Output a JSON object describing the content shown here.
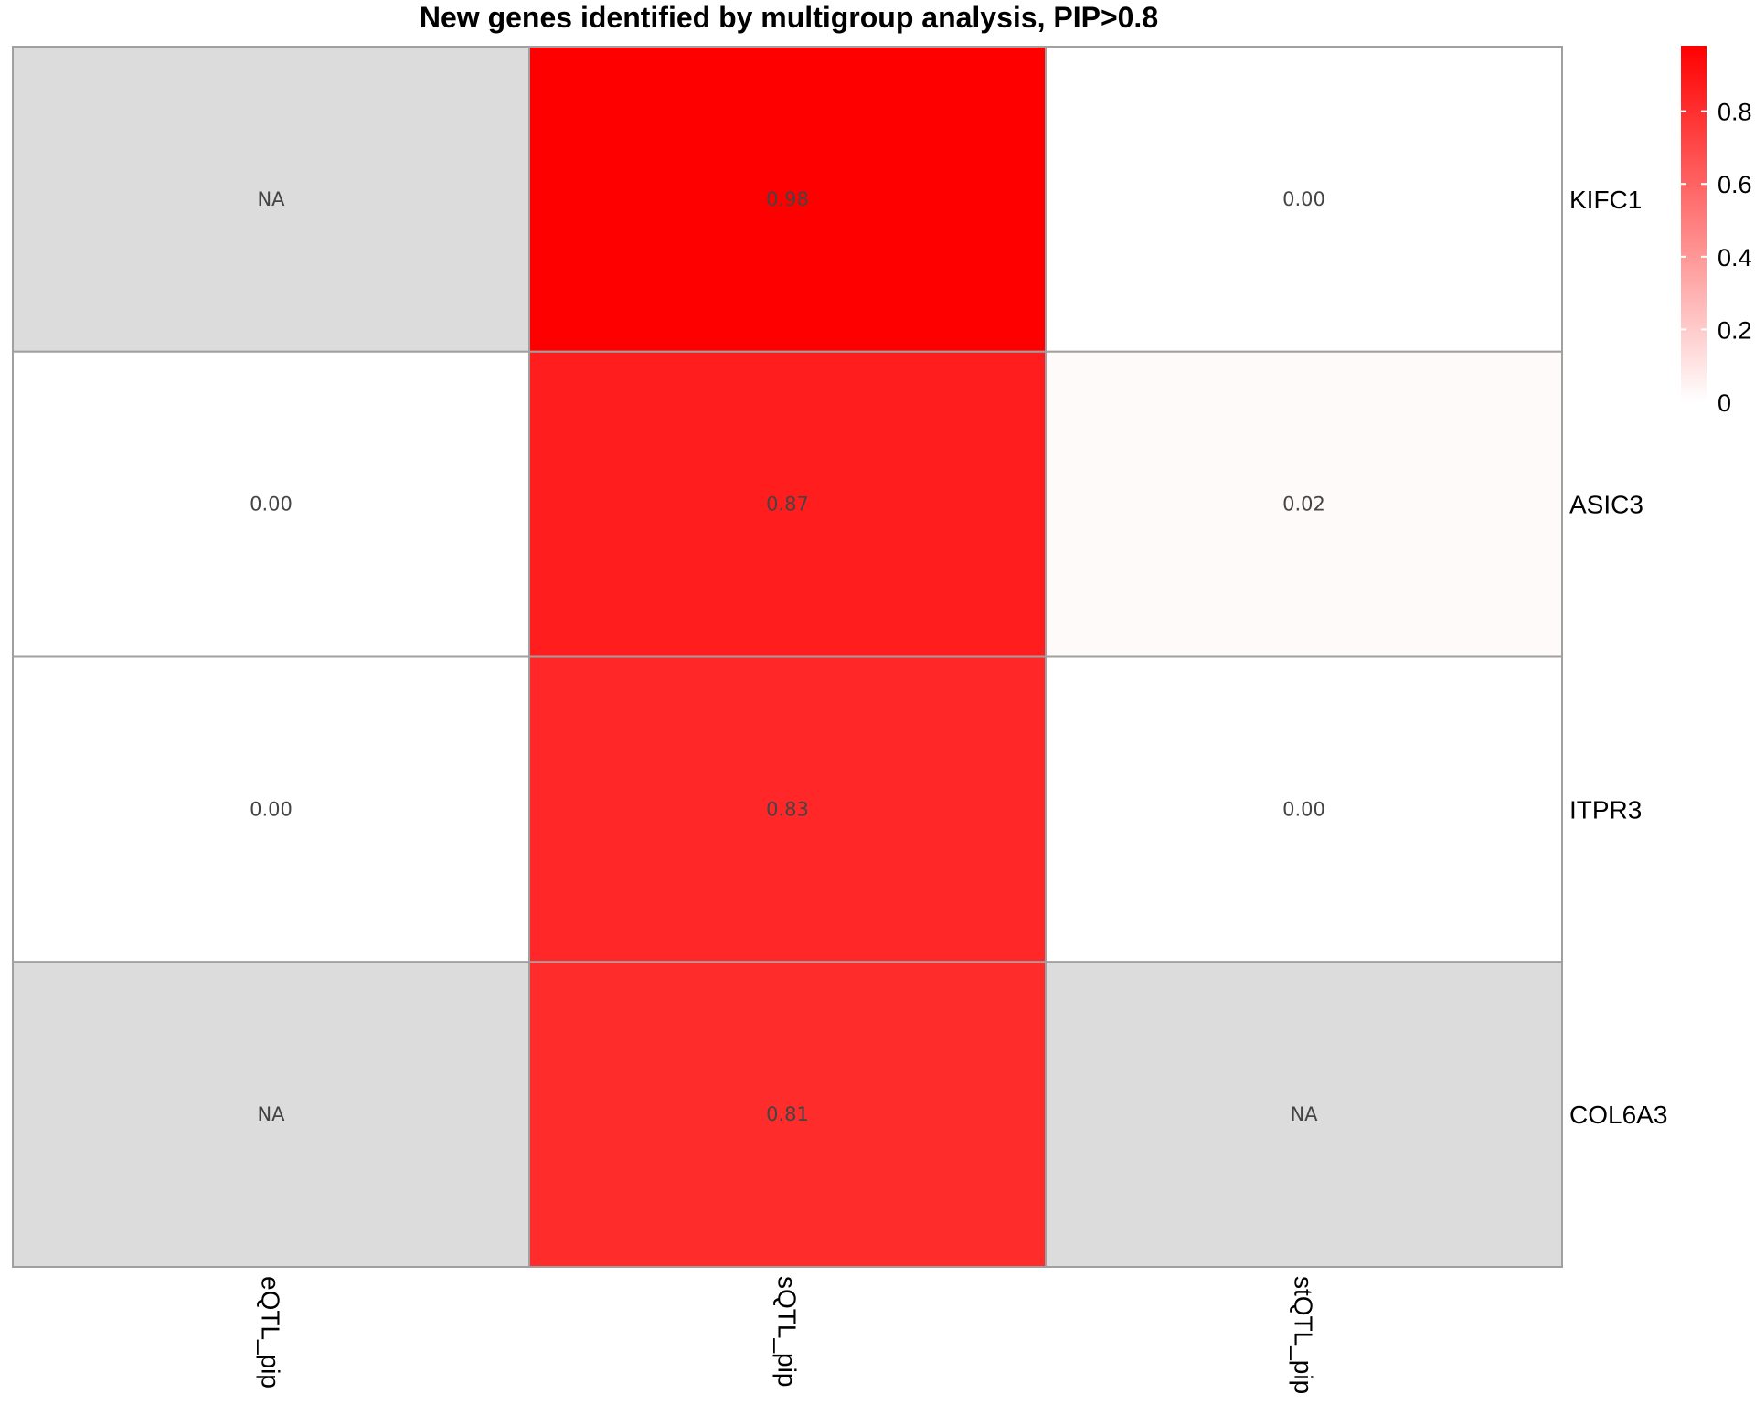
{
  "chart_data": {
    "type": "heatmap",
    "title": "New genes identified by multigroup analysis, PIP>0.8",
    "rows": [
      "KIFC1",
      "ASIC3",
      "ITPR3",
      "COL6A3"
    ],
    "columns": [
      "eQTL_pip",
      "sQTL_pip",
      "stQTL_pip"
    ],
    "values": [
      [
        null,
        0.98,
        0.0
      ],
      [
        0.0,
        0.87,
        0.02
      ],
      [
        0.0,
        0.83,
        0.0
      ],
      [
        null,
        0.81,
        null
      ]
    ],
    "cell_labels": [
      [
        "NA",
        "0.98",
        "0.00"
      ],
      [
        "0.00",
        "0.87",
        "0.02"
      ],
      [
        "0.00",
        "0.83",
        "0.00"
      ],
      [
        "NA",
        "0.81",
        "NA"
      ]
    ],
    "color_scale": {
      "low": "#ffffff",
      "high": "#ff0000",
      "na_color": "#dcdcdc",
      "min": 0,
      "max": 0.98
    },
    "legend": {
      "ticks": [
        0,
        0.2,
        0.4,
        0.6,
        0.8
      ],
      "tick_labels": [
        "0",
        "0.2",
        "0.4",
        "0.6",
        "0.8"
      ],
      "placement": "top-right"
    },
    "grid_color": "#a0a0a0"
  }
}
